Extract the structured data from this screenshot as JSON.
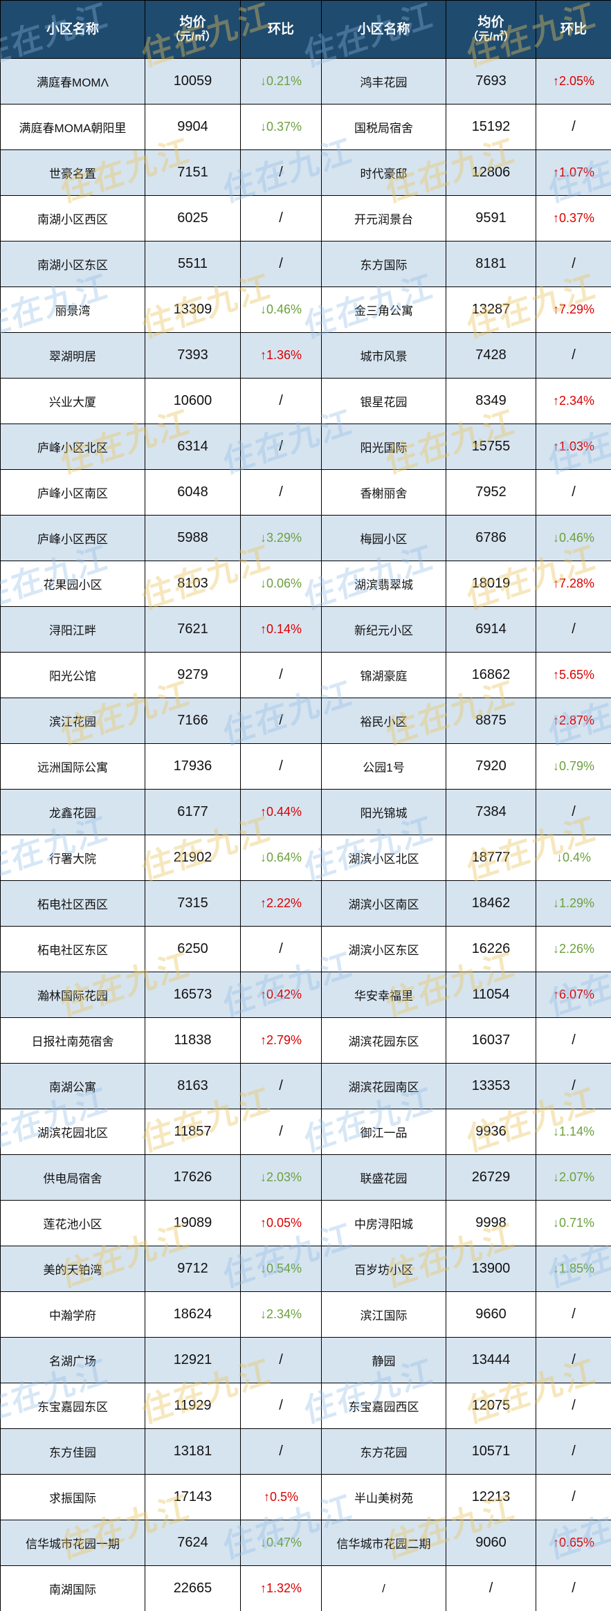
{
  "header": {
    "name_label": "小区名称",
    "price_line1": "均价",
    "price_line2": "（元/㎡）",
    "change_label": "环比"
  },
  "watermark": {
    "text": "住在九江"
  },
  "colors": {
    "header_bg": "#1F4B6E",
    "row_alt": "#D6E4F0",
    "row_white": "#FFFFFF",
    "up_red": "#DB0000",
    "down_green": "#6CA03E",
    "border": "#000000",
    "watermark_gold": "rgba(233,196,92,0.40)",
    "watermark_blue": "rgba(140,186,230,0.35)"
  },
  "chart_data": {
    "type": "table",
    "columns": [
      "小区名称",
      "均价（元/㎡）",
      "环比",
      "小区名称",
      "均价（元/㎡）",
      "环比"
    ],
    "rows": [
      [
        "满庭春MOMΛ",
        "10059",
        "↓0.21%",
        "鸿丰花园",
        "7693",
        "↑2.05%"
      ],
      [
        "满庭春MOMA朝阳里",
        "9904",
        "↓0.37%",
        "国税局宿舍",
        "15192",
        "/"
      ],
      [
        "世豪名置",
        "7151",
        "/",
        "时代豪邸",
        "12806",
        "↑1.07%"
      ],
      [
        "南湖小区西区",
        "6025",
        "/",
        "开元润景台",
        "9591",
        "↑0.37%"
      ],
      [
        "南湖小区东区",
        "5511",
        "/",
        "东方国际",
        "8181",
        "/"
      ],
      [
        "丽景湾",
        "13309",
        "↓0.46%",
        "金三角公寓",
        "13287",
        "↑7.29%"
      ],
      [
        "翠湖明居",
        "7393",
        "↑1.36%",
        "城市风景",
        "7428",
        "/"
      ],
      [
        "兴业大厦",
        "10600",
        "/",
        "银星花园",
        "8349",
        "↑2.34%"
      ],
      [
        "庐峰小区北区",
        "6314",
        "/",
        "阳光国际",
        "15755",
        "↑1.03%"
      ],
      [
        "庐峰小区南区",
        "6048",
        "/",
        "香榭丽舍",
        "7952",
        "/"
      ],
      [
        "庐峰小区西区",
        "5988",
        "↓3.29%",
        "梅园小区",
        "6786",
        "↓0.46%"
      ],
      [
        "花果园小区",
        "8103",
        "↓0.06%",
        "湖滨翡翠城",
        "18019",
        "↑7.28%"
      ],
      [
        "浔阳江畔",
        "7621",
        "↑0.14%",
        "新纪元小区",
        "6914",
        "/"
      ],
      [
        "阳光公馆",
        "9279",
        "/",
        "锦湖豪庭",
        "16862",
        "↑5.65%"
      ],
      [
        "滨江花园",
        "7166",
        "/",
        "裕民小区",
        "8875",
        "↑2.87%"
      ],
      [
        "远洲国际公寓",
        "17936",
        "/",
        "公园1号",
        "7920",
        "↓0.79%"
      ],
      [
        "龙鑫花园",
        "6177",
        "↑0.44%",
        "阳光锦城",
        "7384",
        "/"
      ],
      [
        "行署大院",
        "21902",
        "↓0.64%",
        "湖滨小区北区",
        "18777",
        "↓0.4%"
      ],
      [
        "柘电社区西区",
        "7315",
        "↑2.22%",
        "湖滨小区南区",
        "18462",
        "↓1.29%"
      ],
      [
        "柘电社区东区",
        "6250",
        "/",
        "湖滨小区东区",
        "16226",
        "↓2.26%"
      ],
      [
        "瀚林国际花园",
        "16573",
        "↑0.42%",
        "华安幸福里",
        "11054",
        "↑6.07%"
      ],
      [
        "日报社南苑宿舍",
        "11838",
        "↑2.79%",
        "湖滨花园东区",
        "16037",
        "/"
      ],
      [
        "南湖公寓",
        "8163",
        "/",
        "湖滨花园南区",
        "13353",
        "/"
      ],
      [
        "湖滨花园北区",
        "11857",
        "/",
        "御江一品",
        "9936",
        "↓1.14%"
      ],
      [
        "供电局宿舍",
        "17626",
        "↓2.03%",
        "联盛花园",
        "26729",
        "↓2.07%"
      ],
      [
        "莲花池小区",
        "19089",
        "↑0.05%",
        "中房浔阳城",
        "9998",
        "↓0.71%"
      ],
      [
        "美的天铂湾",
        "9712",
        "↓0.54%",
        "百岁坊小区",
        "13900",
        "↓1.85%"
      ],
      [
        "中瀚学府",
        "18624",
        "↓2.34%",
        "滨江国际",
        "9660",
        "/"
      ],
      [
        "名湖广场",
        "12921",
        "/",
        "静园",
        "13444",
        "/"
      ],
      [
        "东宝嘉园东区",
        "11929",
        "/",
        "东宝嘉园西区",
        "12075",
        "/"
      ],
      [
        "东方佳园",
        "13181",
        "/",
        "东方花园",
        "10571",
        "/"
      ],
      [
        "求振国际",
        "17143",
        "↑0.5%",
        "半山美树苑",
        "12213",
        "/"
      ],
      [
        "信华城市花园一期",
        "7624",
        "↓0.47%",
        "信华城市花园二期",
        "9060",
        "↑0.65%"
      ],
      [
        "南湖国际",
        "22665",
        "↑1.32%",
        "/",
        "/",
        "/"
      ]
    ]
  }
}
